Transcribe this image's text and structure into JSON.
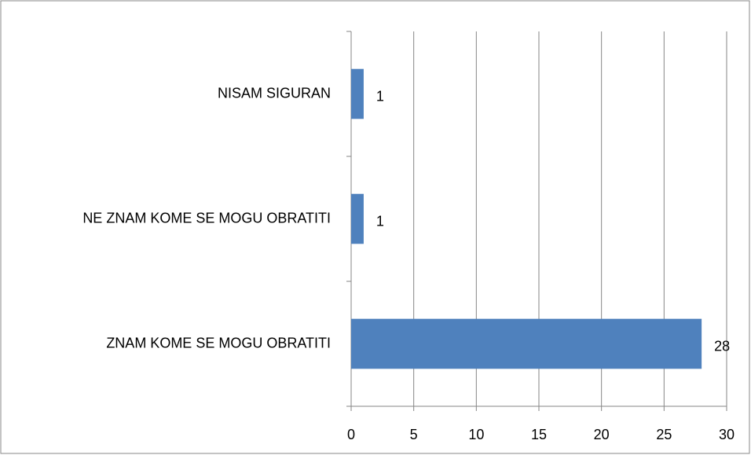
{
  "chart_data": {
    "type": "hbar",
    "categories": [
      "NISAM SIGURAN",
      "NE ZNAM KOME SE MOGU OBRATITI",
      "ZNAM KOME SE MOGU OBRATITI"
    ],
    "values": [
      1,
      1,
      28
    ],
    "color": "#4f81bd",
    "xlim": [
      0,
      30
    ],
    "xticks": [
      0,
      5,
      10,
      15,
      20,
      25,
      30
    ],
    "grid": true,
    "data_labels": true
  }
}
